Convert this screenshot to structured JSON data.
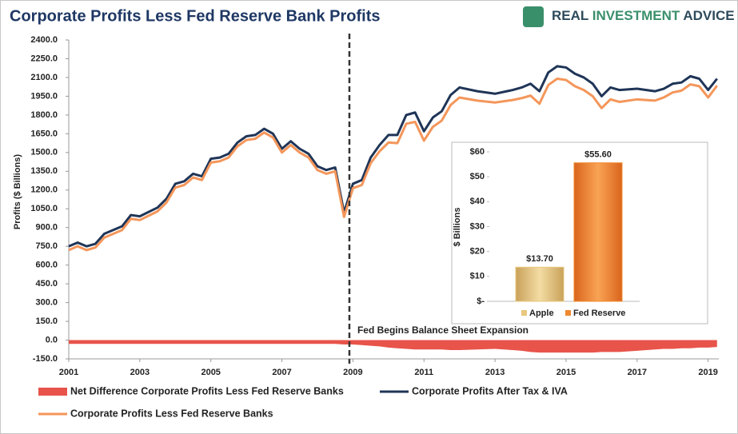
{
  "chart_data": [
    {
      "type": "line",
      "title": "Corporate Profits Less Fed Reserve Bank Profits",
      "logo": [
        "REAL",
        "INVESTMENT",
        "ADVICE"
      ],
      "y_label": "Profits ($ Billions)",
      "annotation": {
        "text": "Fed Begins Balance Sheet Expansion",
        "x": 2008.9
      },
      "x": [
        2001.0,
        2001.25,
        2001.5,
        2001.75,
        2002.0,
        2002.5,
        2002.75,
        2003.0,
        2003.5,
        2003.75,
        2004.0,
        2004.25,
        2004.5,
        2004.75,
        2005.0,
        2005.25,
        2005.5,
        2005.75,
        2006.0,
        2006.25,
        2006.5,
        2006.75,
        2007.0,
        2007.25,
        2007.5,
        2007.75,
        2008.0,
        2008.25,
        2008.5,
        2008.75,
        2009.0,
        2009.25,
        2009.5,
        2009.75,
        2010.0,
        2010.25,
        2010.5,
        2010.75,
        2011.0,
        2011.25,
        2011.5,
        2011.75,
        2012.0,
        2012.5,
        2013.0,
        2013.5,
        2013.75,
        2014.0,
        2014.25,
        2014.5,
        2014.75,
        2015.0,
        2015.25,
        2015.5,
        2015.75,
        2016.0,
        2016.25,
        2016.5,
        2017.0,
        2017.5,
        2017.75,
        2018.0,
        2018.25,
        2018.5,
        2018.75,
        2019.0,
        2019.25
      ],
      "series": [
        {
          "name": "Net Difference Corporate Profits Less Fed Reserve Banks",
          "color": "#e8534a",
          "style": "area",
          "values": [
            -30,
            -30,
            -30,
            -30,
            -30,
            -30,
            -30,
            -30,
            -30,
            -30,
            -30,
            -30,
            -30,
            -30,
            -30,
            -30,
            -30,
            -30,
            -30,
            -30,
            -30,
            -30,
            -30,
            -30,
            -30,
            -30,
            -30,
            -30,
            -30,
            -35,
            -35,
            -40,
            -45,
            -50,
            -60,
            -65,
            -70,
            -75,
            -75,
            -75,
            -75,
            -80,
            -80,
            -75,
            -70,
            -80,
            -85,
            -95,
            -100,
            -100,
            -100,
            -100,
            -100,
            -100,
            -100,
            -95,
            -95,
            -95,
            -85,
            -75,
            -70,
            -70,
            -65,
            -65,
            -60,
            -60,
            -55
          ]
        },
        {
          "name": "Corporate Profits After Tax & IVA",
          "color": "#1f3557",
          "style": "line",
          "values": [
            750,
            780,
            750,
            770,
            850,
            910,
            1000,
            990,
            1060,
            1130,
            1250,
            1270,
            1330,
            1310,
            1450,
            1460,
            1490,
            1580,
            1630,
            1640,
            1690,
            1650,
            1530,
            1590,
            1530,
            1490,
            1390,
            1360,
            1380,
            1020,
            1250,
            1280,
            1460,
            1560,
            1640,
            1640,
            1800,
            1820,
            1670,
            1780,
            1830,
            1960,
            2020,
            1990,
            1970,
            2000,
            2020,
            2050,
            1990,
            2140,
            2190,
            2180,
            2130,
            2100,
            2050,
            1950,
            2020,
            2000,
            2010,
            1990,
            2010,
            2050,
            2060,
            2110,
            2090,
            2000,
            2090
          ]
        },
        {
          "name": "Corporate Profits Less Fed Reserve Banks",
          "color": "#f4965a",
          "style": "line",
          "values": [
            720,
            750,
            720,
            740,
            820,
            880,
            970,
            960,
            1030,
            1100,
            1220,
            1240,
            1300,
            1280,
            1420,
            1430,
            1460,
            1550,
            1600,
            1610,
            1660,
            1620,
            1500,
            1560,
            1500,
            1460,
            1360,
            1330,
            1350,
            985,
            1215,
            1240,
            1415,
            1510,
            1580,
            1575,
            1730,
            1745,
            1595,
            1705,
            1755,
            1880,
            1940,
            1915,
            1900,
            1920,
            1935,
            1955,
            1890,
            2040,
            2090,
            2080,
            2030,
            2000,
            1950,
            1855,
            1925,
            1905,
            1925,
            1915,
            1940,
            1980,
            1995,
            2045,
            2030,
            1940,
            2035
          ]
        }
      ],
      "xlim": [
        2001,
        2019.3
      ],
      "xticks": [
        2001,
        2003,
        2005,
        2007,
        2009,
        2011,
        2013,
        2015,
        2017,
        2019
      ],
      "ylim": [
        -150,
        2400
      ],
      "yticks": [
        {
          "value": -150,
          "label": "-150.0"
        },
        {
          "value": 0,
          "label": "0.0"
        },
        {
          "value": 150,
          "label": "150.0"
        },
        {
          "value": 300,
          "label": "300.0"
        },
        {
          "value": 450,
          "label": "450.0"
        },
        {
          "value": 600,
          "label": "600.0"
        },
        {
          "value": 750,
          "label": "750.0"
        },
        {
          "value": 900,
          "label": "900.0"
        },
        {
          "value": 1050,
          "label": "1050.0"
        },
        {
          "value": 1200,
          "label": "1200.0"
        },
        {
          "value": 1350,
          "label": "1350.0"
        },
        {
          "value": 1500,
          "label": "1500.0"
        },
        {
          "value": 1650,
          "label": "1650.0"
        },
        {
          "value": 1800,
          "label": "1800.0"
        },
        {
          "value": 1950,
          "label": "1950.0"
        },
        {
          "value": 2100,
          "label": "2100.0"
        },
        {
          "value": 2250,
          "label": "2250.0"
        },
        {
          "value": 2400,
          "label": "2400.0"
        }
      ]
    },
    {
      "type": "bar",
      "y_label": "$ Billions",
      "categories": [
        "Apple",
        "Fed Reserve"
      ],
      "values": [
        13.7,
        55.6
      ],
      "value_labels": [
        "$13.70",
        "$55.60"
      ],
      "colors": [
        "#e8c77e",
        "#f0892e"
      ],
      "ylim": [
        0,
        60
      ],
      "yticks": [
        {
          "value": 0,
          "label": "$-"
        },
        {
          "value": 10,
          "label": "$10"
        },
        {
          "value": 20,
          "label": "$20"
        },
        {
          "value": 30,
          "label": "$30"
        },
        {
          "value": 40,
          "label": "$40"
        },
        {
          "value": 50,
          "label": "$50"
        },
        {
          "value": 60,
          "label": "$60"
        }
      ]
    }
  ]
}
